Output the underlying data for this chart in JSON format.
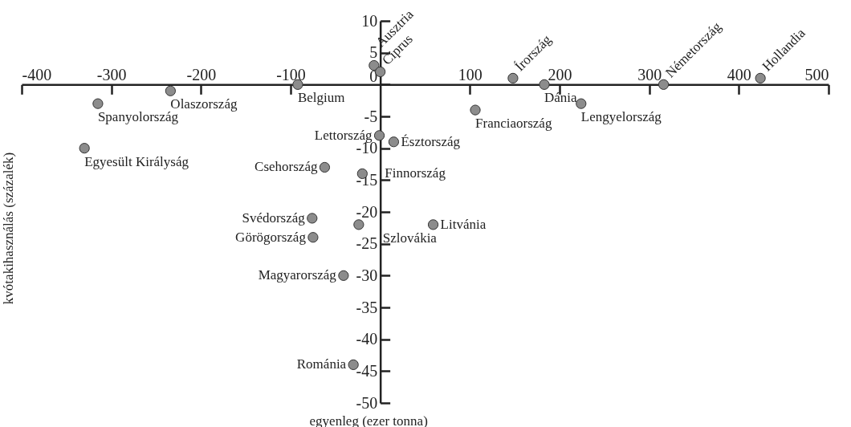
{
  "chart_data": {
    "type": "scatter",
    "xlabel": "egyenleg (ezer tonna)",
    "ylabel": "kvótakihasználás (százalék)",
    "xlim": [
      -400,
      500
    ],
    "ylim": [
      -50,
      10
    ],
    "xticks": [
      -400,
      -300,
      -200,
      -100,
      100,
      200,
      300,
      400,
      500
    ],
    "yticks": [
      10,
      5,
      0,
      -5,
      -10,
      -15,
      -20,
      -25,
      -30,
      -35,
      -40,
      -45,
      -50
    ],
    "marker": "circle",
    "series": [
      {
        "color": "#8c8c8c",
        "x": [
          -7,
          0,
          148,
          183,
          316,
          424,
          -92,
          -234,
          -315,
          -330,
          106,
          224,
          -1,
          15,
          -62,
          -20,
          -76,
          -75,
          -24,
          59,
          -41,
          -30
        ],
        "values": [
          3,
          2,
          1,
          0,
          0,
          1,
          0,
          -1,
          -3,
          -10,
          -4,
          -3,
          -8,
          -9,
          -13,
          -14,
          -21,
          -24,
          -22,
          -22,
          -30,
          -44
        ]
      }
    ],
    "annotations": [
      {
        "text": "Ausztria",
        "x": -7,
        "y": 3
      },
      {
        "text": "Ciprus",
        "x": 0,
        "y": 2
      },
      {
        "text": "Írország",
        "x": 148,
        "y": 1
      },
      {
        "text": "Dánia",
        "x": 183,
        "y": 0
      },
      {
        "text": "Németország",
        "x": 316,
        "y": 0
      },
      {
        "text": "Hollandia",
        "x": 424,
        "y": 1
      },
      {
        "text": "Belgium",
        "x": -92,
        "y": 0
      },
      {
        "text": "Olaszország",
        "x": -234,
        "y": -1
      },
      {
        "text": "Spanyolország",
        "x": -315,
        "y": -3
      },
      {
        "text": "Egyesült Királyság",
        "x": -330,
        "y": -10
      },
      {
        "text": "Franciaország",
        "x": 106,
        "y": -4
      },
      {
        "text": "Lengyelország",
        "x": 224,
        "y": -3
      },
      {
        "text": "Lettország",
        "x": -1,
        "y": -8
      },
      {
        "text": "Észtország",
        "x": 15,
        "y": -9
      },
      {
        "text": "Csehország",
        "x": -62,
        "y": -13
      },
      {
        "text": "Finnország",
        "x": -20,
        "y": -14
      },
      {
        "text": "Svédország",
        "x": -76,
        "y": -21
      },
      {
        "text": "Görögország",
        "x": -75,
        "y": -24
      },
      {
        "text": "Szlovákia",
        "x": -24,
        "y": -22
      },
      {
        "text": "Litvánia",
        "x": 59,
        "y": -22
      },
      {
        "text": "Magyarország",
        "x": -41,
        "y": -30
      },
      {
        "text": "Románia",
        "x": -30,
        "y": -44
      }
    ]
  }
}
